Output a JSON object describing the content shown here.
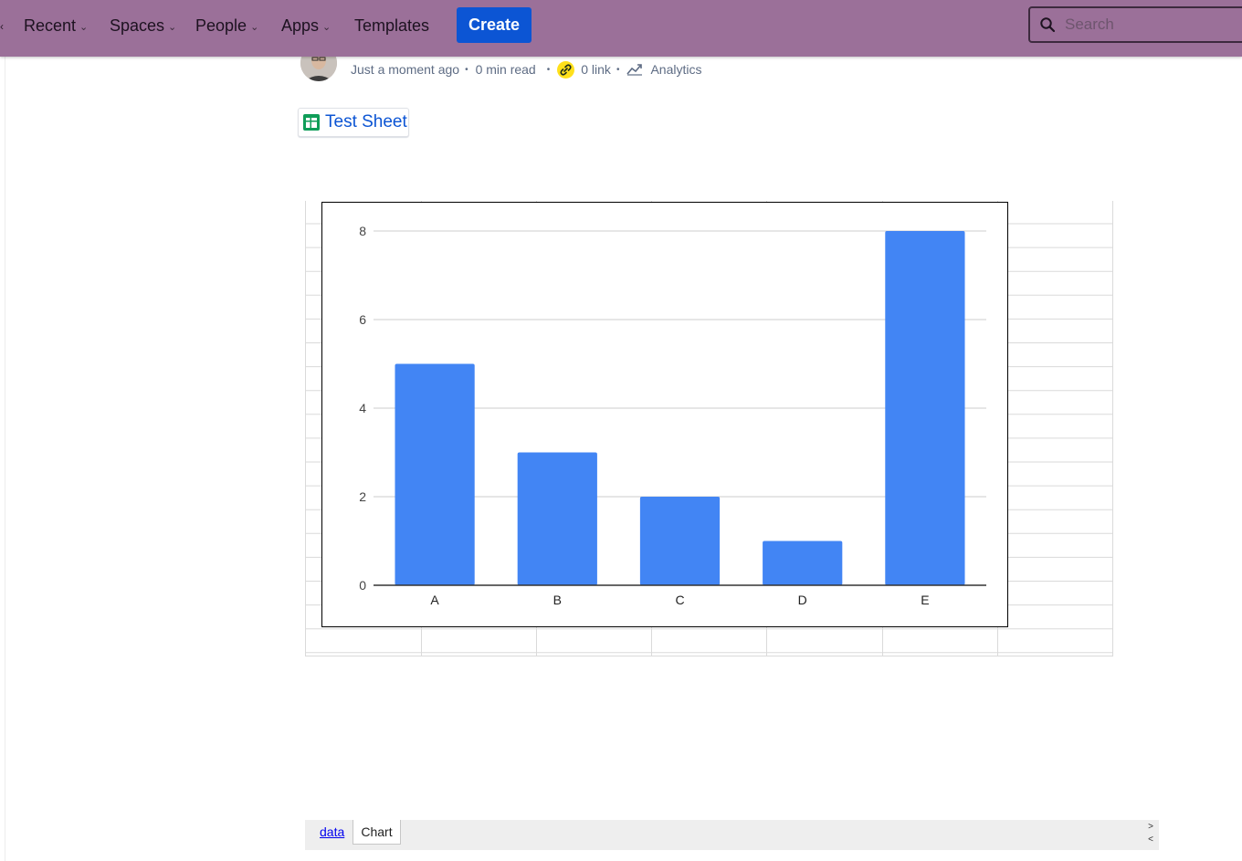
{
  "nav": {
    "edge_glyph": "‹",
    "items": [
      {
        "label": "Recent"
      },
      {
        "label": "Spaces"
      },
      {
        "label": "People"
      },
      {
        "label": "Apps"
      },
      {
        "label": "Templates"
      }
    ],
    "create_label": "Create",
    "search_placeholder": "Search"
  },
  "meta": {
    "updated": "Just a moment ago",
    "read_time": "0 min read",
    "links": "0 link",
    "analytics": "Analytics"
  },
  "sheet": {
    "title": "Test Sheet"
  },
  "chart_data": {
    "type": "bar",
    "categories": [
      "A",
      "B",
      "C",
      "D",
      "E"
    ],
    "values": [
      5,
      3,
      2,
      1,
      8
    ],
    "title": "",
    "xlabel": "",
    "ylabel": "",
    "ylim": [
      0,
      8
    ],
    "yticks": [
      0,
      2,
      4,
      6,
      8
    ],
    "grid": true,
    "bar_color": "#4285f4"
  },
  "tabs": {
    "data_label": "data",
    "chart_label": "Chart",
    "next_glyph": ">",
    "prev_glyph": "<"
  },
  "colors": {
    "nav_bg": "#9b7099",
    "create_bg": "#0c55d4",
    "link_accent": "#ffe01b"
  }
}
